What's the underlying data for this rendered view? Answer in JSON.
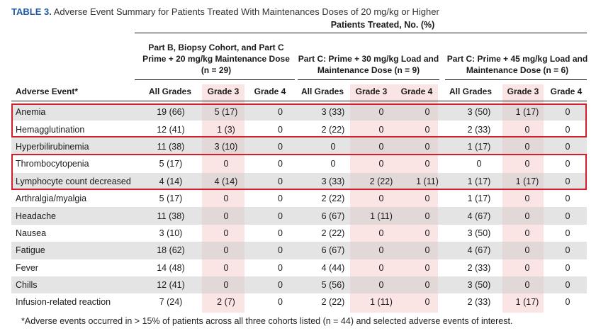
{
  "caption": {
    "label": "TABLE 3.",
    "text": "Adverse Event Summary for Patients Treated With Maintenances Doses of 20 mg/kg or Higher"
  },
  "super_header": "Patients Treated, No. (%)",
  "groups": [
    {
      "lines": [
        "Part B, Biopsy Cohort, and Part C",
        "Prime + 20 mg/kg Maintenance Dose",
        "(n = 29)"
      ]
    },
    {
      "lines": [
        "Part C: Prime + 30 mg/kg Load and",
        "Maintenance Dose (n = 9)"
      ]
    },
    {
      "lines": [
        "Part C: Prime + 45 mg/kg Load and",
        "Maintenance Dose (n = 6)"
      ]
    }
  ],
  "columns": [
    "Adverse Event*",
    "All Grades",
    "Grade 3",
    "Grade 4",
    "All Grades",
    "Grade 3",
    "Grade 4",
    "All Grades",
    "Grade 3",
    "Grade 4"
  ],
  "rows": [
    {
      "event": "Anemia",
      "values": [
        "19 (66)",
        "5 (17)",
        "0",
        "3 (33)",
        "0",
        "0",
        "3 (50)",
        "1 (17)",
        "0"
      ]
    },
    {
      "event": "Hemagglutination",
      "values": [
        "12 (41)",
        "1 (3)",
        "0",
        "2 (22)",
        "0",
        "0",
        "2 (33)",
        "0",
        "0"
      ]
    },
    {
      "event": "Hyperbilirubinemia",
      "values": [
        "11 (38)",
        "3 (10)",
        "0",
        "0",
        "0",
        "0",
        "1 (17)",
        "0",
        "0"
      ]
    },
    {
      "event": "Thrombocytopenia",
      "values": [
        "5 (17)",
        "0",
        "0",
        "0",
        "0",
        "0",
        "0",
        "0",
        "0"
      ]
    },
    {
      "event": "Lymphocyte count decreased",
      "values": [
        "4 (14)",
        "4 (14)",
        "0",
        "3 (33)",
        "2 (22)",
        "1 (11)",
        "1 (17)",
        "1 (17)",
        "0"
      ]
    },
    {
      "event": "Arthralgia/myalgia",
      "values": [
        "5 (17)",
        "0",
        "0",
        "2 (22)",
        "0",
        "0",
        "1 (17)",
        "0",
        "0"
      ]
    },
    {
      "event": "Headache",
      "values": [
        "11 (38)",
        "0",
        "0",
        "6 (67)",
        "1 (11)",
        "0",
        "4 (67)",
        "0",
        "0"
      ]
    },
    {
      "event": "Nausea",
      "values": [
        "3 (10)",
        "0",
        "0",
        "2 (22)",
        "0",
        "0",
        "3 (50)",
        "0",
        "0"
      ]
    },
    {
      "event": "Fatigue",
      "values": [
        "18 (62)",
        "0",
        "0",
        "6 (67)",
        "0",
        "0",
        "4 (67)",
        "0",
        "0"
      ]
    },
    {
      "event": "Fever",
      "values": [
        "14 (48)",
        "0",
        "0",
        "4 (44)",
        "0",
        "0",
        "2 (33)",
        "0",
        "0"
      ]
    },
    {
      "event": "Chills",
      "values": [
        "12 (41)",
        "0",
        "0",
        "5 (56)",
        "0",
        "0",
        "3 (50)",
        "0",
        "0"
      ]
    },
    {
      "event": "Infusion-related reaction",
      "values": [
        "7 (24)",
        "2 (7)",
        "0",
        "2 (22)",
        "1 (11)",
        "0",
        "2 (33)",
        "1 (17)",
        "0"
      ]
    }
  ],
  "highlight_color": "#fbe4e4",
  "box_color": "#d21f2b",
  "footnote": "*Adverse events occurred in > 15% of patients across all three cohorts listed (n = 44) and selected adverse events of interest."
}
